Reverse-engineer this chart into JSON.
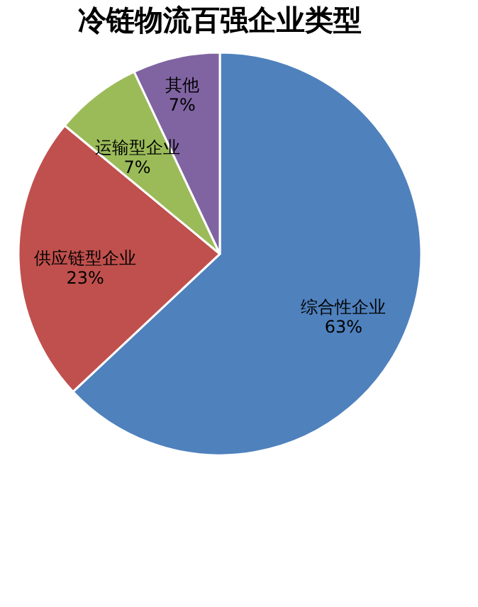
{
  "chart_data": {
    "type": "pie",
    "title": "冷链物流百强企业类型",
    "categories": [
      "综合性企业",
      "供应链型企业",
      "运输型企业",
      "其他"
    ],
    "values": [
      63,
      23,
      7,
      7
    ],
    "value_labels": [
      "63%",
      "23%",
      "7%",
      "7%"
    ],
    "colors": [
      "#4f81bd",
      "#c0504d",
      "#9bbb59",
      "#8064a2"
    ],
    "legend": false
  }
}
